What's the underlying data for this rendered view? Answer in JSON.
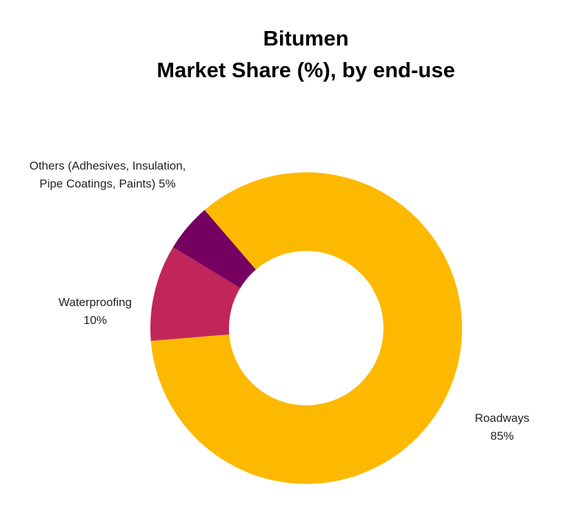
{
  "chart_data": {
    "type": "donut",
    "title": [
      "Bitumen",
      "Market Share (%), by end-use"
    ],
    "categories": [
      "Roadways",
      "Waterproofing",
      "Others (Adhesives, Insulation, Pipe Coatings, Paints)"
    ],
    "values": [
      85,
      10,
      5
    ],
    "value_labels": [
      "85%",
      "10%",
      "5%"
    ],
    "colors": [
      "#FDB900",
      "#C0265A",
      "#76005F"
    ]
  }
}
